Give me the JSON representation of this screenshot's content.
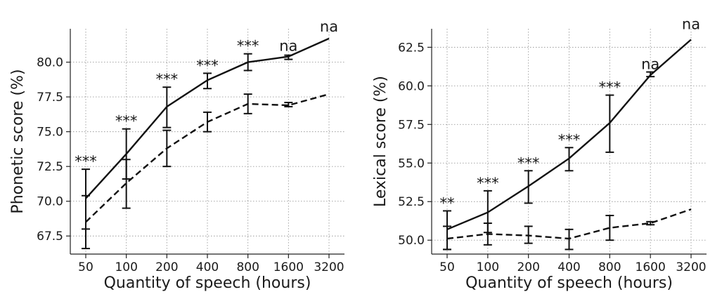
{
  "chart_data": [
    {
      "type": "line",
      "xlabel": "Quantity of speech (hours)",
      "ylabel": "Phonetic score (%)",
      "x": [
        50,
        100,
        200,
        400,
        800,
        1600,
        3200
      ],
      "x_tick_labels": [
        "50",
        "100",
        "200",
        "400",
        "800",
        "1600",
        "3200"
      ],
      "x_scale": "log",
      "ylim": [
        66.2,
        82.4
      ],
      "y_ticks": [
        67.5,
        70.0,
        72.5,
        75.0,
        77.5,
        80.0
      ],
      "y_tick_labels": [
        "67.5",
        "70.0",
        "72.5",
        "75.0",
        "77.5",
        "80.0"
      ],
      "grid": true,
      "series": [
        {
          "style": "solid",
          "values": [
            70.2,
            73.4,
            76.8,
            78.7,
            80.0,
            80.4,
            81.7
          ],
          "err_low": [
            68.0,
            71.6,
            75.3,
            78.1,
            79.4,
            80.2,
            null
          ],
          "err_high": [
            72.3,
            75.2,
            78.2,
            79.2,
            80.6,
            80.5,
            null
          ]
        },
        {
          "style": "dashed",
          "values": [
            68.5,
            71.3,
            73.8,
            75.7,
            77.0,
            76.9,
            77.7
          ],
          "err_low": [
            66.6,
            69.5,
            72.5,
            75.0,
            76.3,
            76.8,
            null
          ],
          "err_high": [
            70.4,
            73.0,
            75.1,
            76.4,
            77.7,
            77.1,
            null
          ]
        }
      ],
      "annotations": [
        {
          "x": 50,
          "y": 72.3,
          "text": "***"
        },
        {
          "x": 100,
          "y": 75.2,
          "text": "***"
        },
        {
          "x": 200,
          "y": 78.2,
          "text": "***"
        },
        {
          "x": 400,
          "y": 79.2,
          "text": "***"
        },
        {
          "x": 800,
          "y": 80.6,
          "text": "***"
        },
        {
          "x": 1600,
          "y": 80.6,
          "text": "na"
        },
        {
          "x": 3200,
          "y": 82.0,
          "text": "na"
        }
      ]
    },
    {
      "type": "line",
      "xlabel": "Quantity of speech (hours)",
      "ylabel": "Lexical score (%)",
      "x": [
        50,
        100,
        200,
        400,
        800,
        1600,
        3200
      ],
      "x_tick_labels": [
        "50",
        "100",
        "200",
        "400",
        "800",
        "1600",
        "3200"
      ],
      "x_scale": "log",
      "ylim": [
        49.1,
        63.7
      ],
      "y_ticks": [
        50.0,
        52.5,
        55.0,
        57.5,
        60.0,
        62.5
      ],
      "y_tick_labels": [
        "50.0",
        "52.5",
        "55.0",
        "57.5",
        "60.0",
        "62.5"
      ],
      "grid": true,
      "series": [
        {
          "style": "solid",
          "values": [
            50.7,
            51.8,
            53.5,
            55.3,
            57.6,
            60.7,
            63.0
          ],
          "err_low": [
            49.4,
            50.5,
            52.4,
            54.5,
            55.7,
            60.6,
            null
          ],
          "err_high": [
            51.9,
            53.2,
            54.5,
            56.0,
            59.4,
            60.9,
            null
          ]
        },
        {
          "style": "dashed",
          "values": [
            50.1,
            50.4,
            50.3,
            50.1,
            50.8,
            51.1,
            52.0
          ],
          "err_low": [
            49.4,
            49.7,
            49.8,
            49.4,
            50.0,
            51.0,
            null
          ],
          "err_high": [
            50.9,
            51.1,
            50.9,
            50.7,
            51.6,
            51.2,
            null
          ]
        }
      ],
      "annotations": [
        {
          "x": 50,
          "y": 51.9,
          "text": "**"
        },
        {
          "x": 100,
          "y": 53.2,
          "text": "***"
        },
        {
          "x": 200,
          "y": 54.5,
          "text": "***"
        },
        {
          "x": 400,
          "y": 56.0,
          "text": "***"
        },
        {
          "x": 800,
          "y": 59.4,
          "text": "***"
        },
        {
          "x": 1600,
          "y": 60.9,
          "text": "na"
        },
        {
          "x": 3200,
          "y": 63.5,
          "text": "na"
        }
      ]
    }
  ]
}
